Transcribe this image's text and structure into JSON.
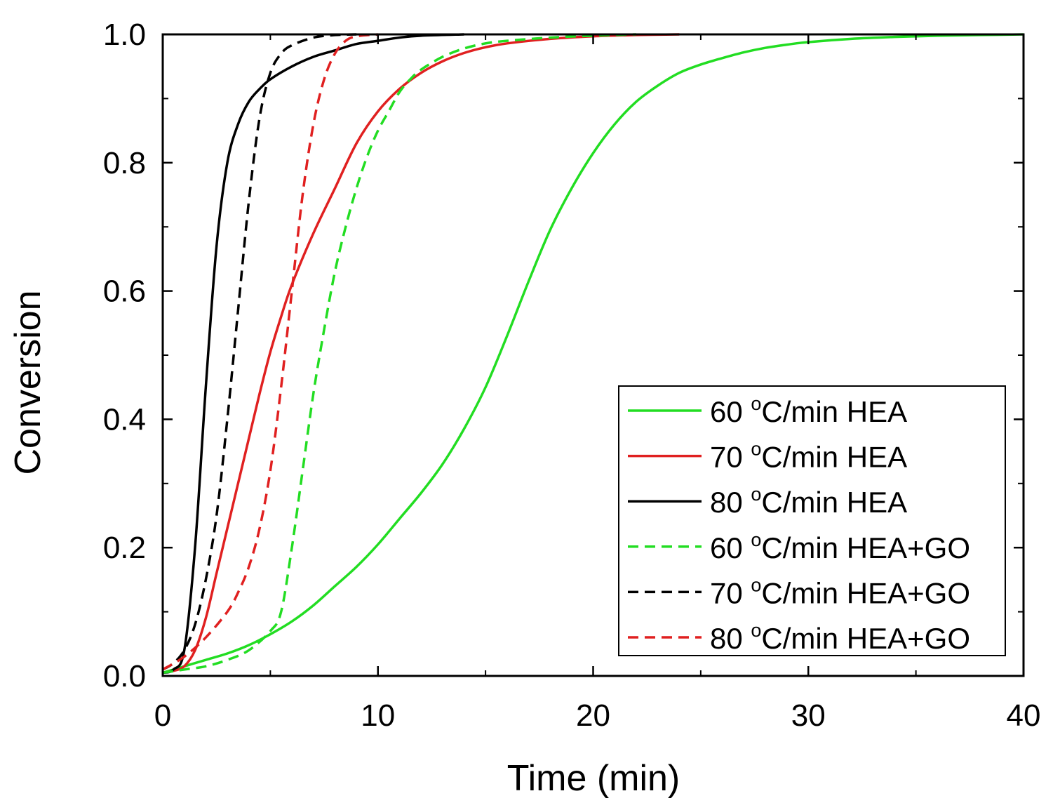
{
  "chart_data": {
    "type": "line",
    "title": "",
    "xlabel": "Time (min)",
    "ylabel": "Conversion",
    "xlim": [
      0,
      40
    ],
    "ylim": [
      0.0,
      1.0
    ],
    "x_ticks": [
      "0",
      "10",
      "20",
      "30",
      "40"
    ],
    "y_ticks": [
      "0.0",
      "0.2",
      "0.4",
      "0.6",
      "0.8",
      "1.0"
    ],
    "grid": false,
    "legend_position": "bottom-right",
    "series": [
      {
        "name": "60 °C/min HEA",
        "label_num": "60",
        "label_rest": "C/min HEA",
        "color": "#22dd22",
        "dash": "solid",
        "x": [
          0,
          1,
          2,
          3,
          4,
          5,
          6,
          7,
          8,
          9,
          10,
          11,
          12,
          13,
          14,
          15,
          16,
          17,
          18,
          19,
          20,
          21,
          22,
          23,
          24,
          25,
          26,
          27,
          28,
          29,
          30,
          32,
          34,
          36,
          38,
          40
        ],
        "y": [
          0.005,
          0.015,
          0.025,
          0.035,
          0.048,
          0.065,
          0.085,
          0.11,
          0.14,
          0.17,
          0.205,
          0.245,
          0.285,
          0.33,
          0.385,
          0.45,
          0.53,
          0.615,
          0.695,
          0.76,
          0.815,
          0.86,
          0.895,
          0.92,
          0.94,
          0.953,
          0.963,
          0.972,
          0.979,
          0.984,
          0.988,
          0.993,
          0.996,
          0.998,
          0.999,
          1.0
        ]
      },
      {
        "name": "70 °C/min HEA",
        "label_num": "70",
        "label_rest": "C/min HEA",
        "color": "#e02020",
        "dash": "solid",
        "x": [
          0,
          0.5,
          1,
          1.5,
          2,
          2.5,
          3,
          3.5,
          4,
          4.5,
          5,
          5.5,
          6,
          7,
          8,
          9,
          10,
          11,
          12,
          13,
          14,
          15,
          16,
          18,
          20,
          22,
          24
        ],
        "y": [
          0.005,
          0.008,
          0.015,
          0.04,
          0.09,
          0.16,
          0.23,
          0.3,
          0.37,
          0.44,
          0.505,
          0.56,
          0.61,
          0.69,
          0.76,
          0.83,
          0.88,
          0.915,
          0.94,
          0.958,
          0.971,
          0.98,
          0.986,
          0.993,
          0.997,
          0.999,
          1.0
        ]
      },
      {
        "name": "80 °C/min HEA",
        "label_num": "80",
        "label_rest": "C/min HEA",
        "color": "#000000",
        "dash": "solid",
        "x": [
          0,
          0.5,
          1,
          1.5,
          2,
          2.5,
          3,
          3.5,
          4,
          4.5,
          5,
          6,
          7,
          8,
          9,
          10,
          11,
          12,
          14
        ],
        "y": [
          0.005,
          0.01,
          0.04,
          0.2,
          0.45,
          0.67,
          0.8,
          0.86,
          0.895,
          0.915,
          0.93,
          0.95,
          0.965,
          0.975,
          0.985,
          0.99,
          0.995,
          0.998,
          1.0
        ]
      },
      {
        "name": "60 °C/min HEA+GO",
        "label_num": "60",
        "label_rest": "C/min HEA+GO",
        "color": "#22dd22",
        "dash": "dashed",
        "x": [
          0,
          1,
          2,
          3,
          4,
          5,
          5.5,
          6,
          6.5,
          7,
          7.5,
          8,
          8.5,
          9,
          9.5,
          10,
          10.5,
          11,
          11.5,
          12,
          13,
          14,
          15,
          16,
          18,
          20,
          22
        ],
        "y": [
          0.005,
          0.01,
          0.015,
          0.025,
          0.04,
          0.07,
          0.1,
          0.2,
          0.32,
          0.44,
          0.54,
          0.63,
          0.7,
          0.76,
          0.81,
          0.85,
          0.88,
          0.91,
          0.93,
          0.945,
          0.965,
          0.978,
          0.986,
          0.99,
          0.995,
          0.998,
          1.0
        ]
      },
      {
        "name": "70 °C/min HEA+GO",
        "label_num": "70",
        "label_rest": "C/min HEA+GO",
        "color": "#000000",
        "dash": "dashed",
        "x": [
          0,
          0.5,
          1,
          1.5,
          2,
          2.5,
          3,
          3.5,
          4,
          4.5,
          5,
          5.5,
          6,
          7,
          8,
          9
        ],
        "y": [
          0.01,
          0.02,
          0.04,
          0.08,
          0.15,
          0.25,
          0.4,
          0.57,
          0.74,
          0.87,
          0.94,
          0.97,
          0.983,
          0.995,
          0.999,
          1.0
        ]
      },
      {
        "name": "80 °C/min HEA+GO",
        "label_num": "80",
        "label_rest": "C/min HEA+GO",
        "color": "#e02020",
        "dash": "dashed",
        "x": [
          0,
          1,
          2,
          3,
          3.5,
          4,
          4.5,
          5,
          5.5,
          6,
          6.5,
          7,
          7.5,
          8,
          8.5,
          9,
          10
        ],
        "y": [
          0.01,
          0.03,
          0.06,
          0.1,
          0.13,
          0.17,
          0.23,
          0.32,
          0.45,
          0.6,
          0.75,
          0.86,
          0.93,
          0.97,
          0.99,
          0.997,
          1.0
        ]
      }
    ]
  }
}
